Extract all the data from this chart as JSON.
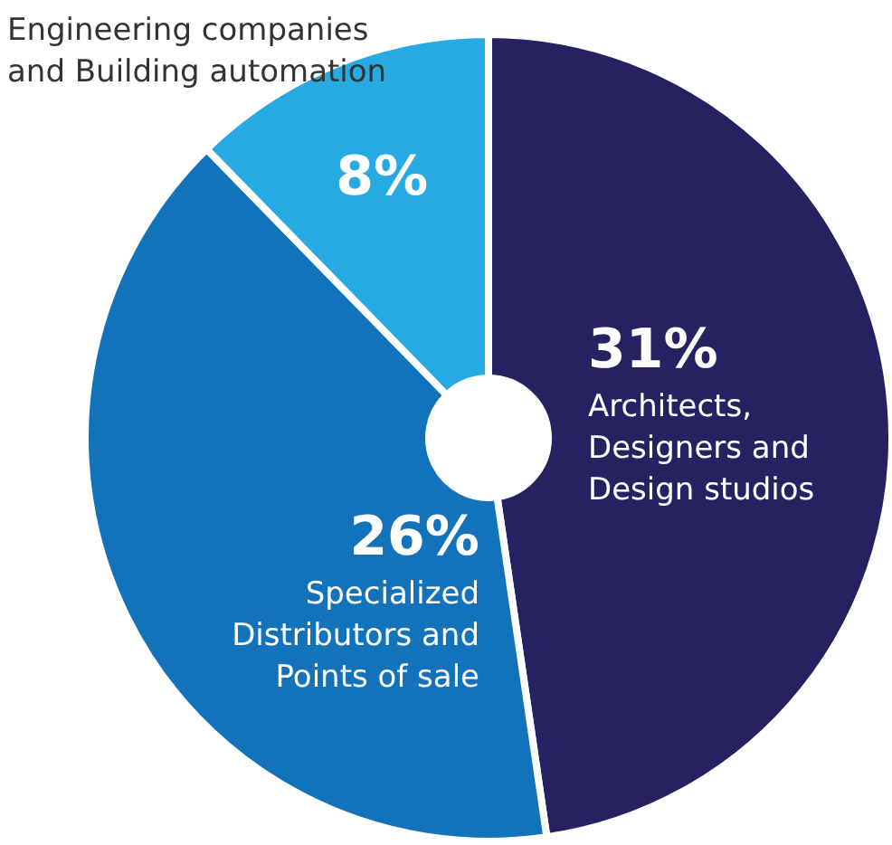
{
  "chart_data": {
    "type": "donut",
    "categories": [
      "Architects, Designers and Design studios",
      "Specialized Distributors and Points of sale",
      "Engineering companies and Building automation"
    ],
    "values": [
      31,
      26,
      8
    ],
    "value_labels": [
      "31%",
      "26%",
      "8%"
    ],
    "colors": [
      "#262262",
      "#1273bb",
      "#27a9e1"
    ],
    "legend": false
  }
}
